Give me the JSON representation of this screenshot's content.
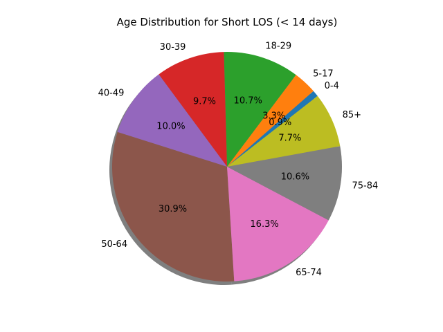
{
  "chart_data": {
    "type": "pie",
    "title": "Age Distribution for Short LOS (< 14 days)",
    "categories": [
      "0-4",
      "5-17",
      "18-29",
      "30-39",
      "40-49",
      "50-64",
      "65-74",
      "75-84",
      "85+"
    ],
    "values": [
      0.9,
      3.3,
      10.7,
      9.7,
      10.0,
      30.9,
      16.3,
      10.6,
      7.7
    ],
    "value_labels": [
      "0.9%",
      "3.3%",
      "10.7%",
      "9.7%",
      "10.0%",
      "30.9%",
      "16.3%",
      "10.6%",
      "7.7%"
    ],
    "colors": [
      "#1f77b4",
      "#ff7f0e",
      "#2ca02c",
      "#d62728",
      "#9467bd",
      "#8c564b",
      "#e377c2",
      "#7f7f7f",
      "#bcbd22"
    ],
    "shadow": true,
    "direction": "counterclockwise"
  }
}
